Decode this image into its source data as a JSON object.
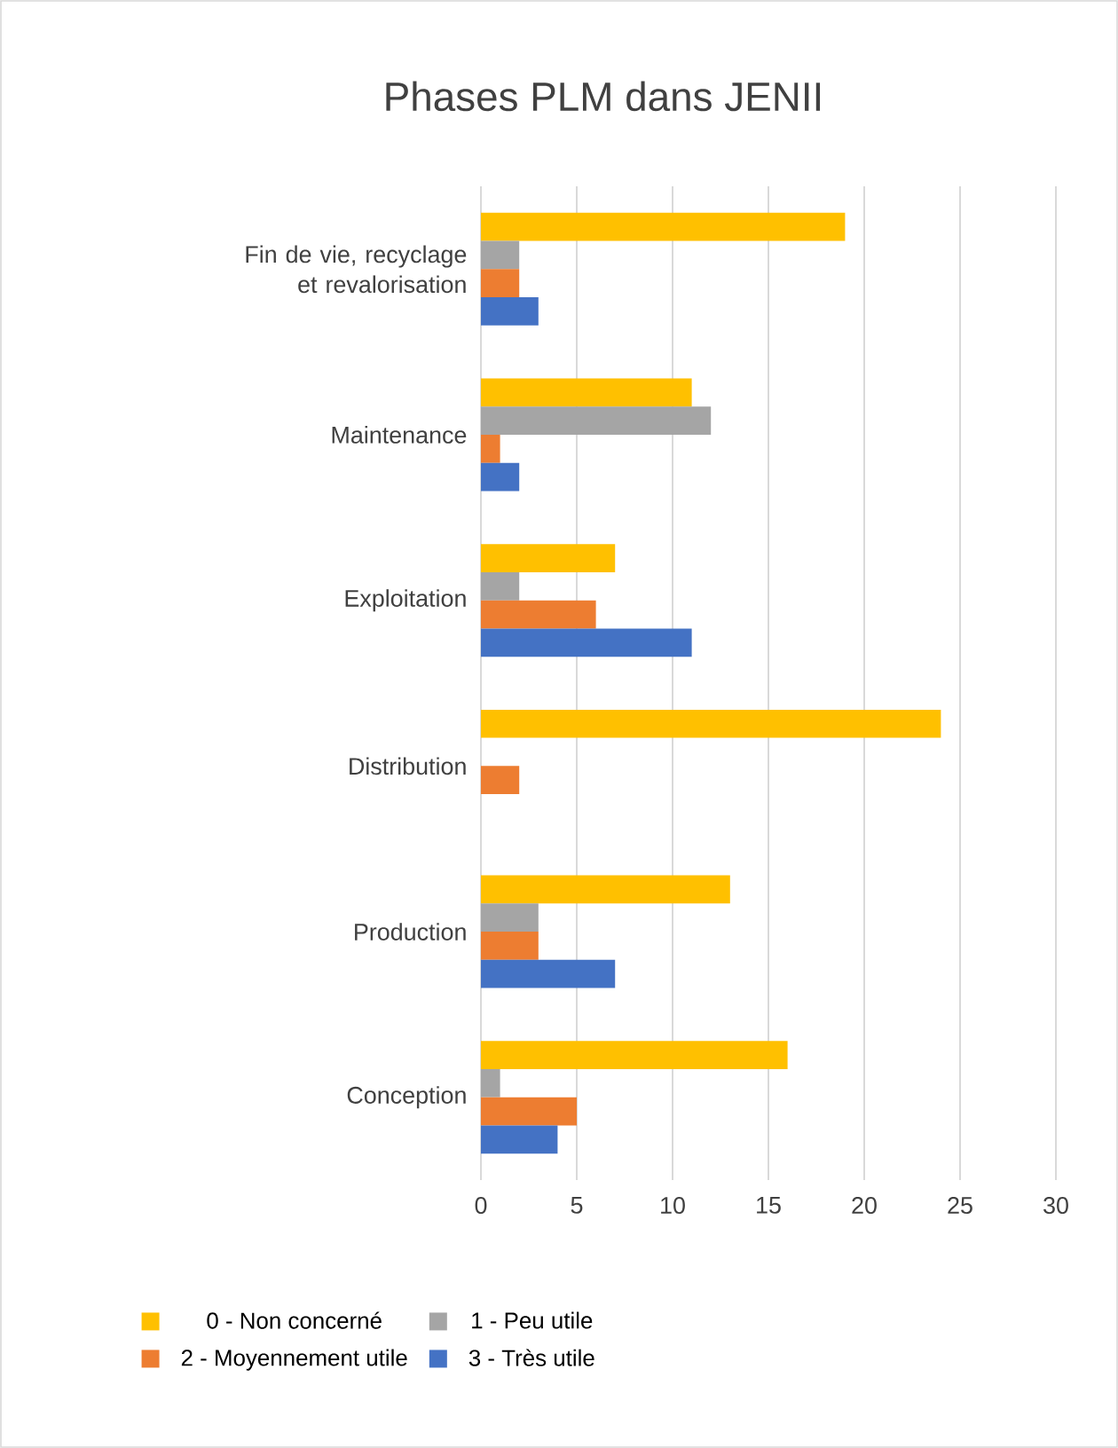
{
  "chart_data": {
    "type": "bar",
    "orientation": "horizontal",
    "title": "Phases PLM dans JENII",
    "categories": [
      "Fin de vie, recyclage et revalorisation",
      "Maintenance",
      "Exploitation",
      "Distribution",
      "Production",
      "Conception"
    ],
    "series": [
      {
        "name": "0 - Non concerné",
        "color": "#ffc000",
        "values": [
          19,
          11,
          7,
          24,
          13,
          16
        ]
      },
      {
        "name": "1 - Peu utile",
        "color": "#a5a5a5",
        "values": [
          2,
          12,
          2,
          0,
          3,
          1
        ]
      },
      {
        "name": "2 - Moyennement utile",
        "color": "#ed7d31",
        "values": [
          2,
          1,
          6,
          2,
          3,
          5
        ]
      },
      {
        "name": "3 - Très utile",
        "color": "#4472c4",
        "values": [
          3,
          2,
          11,
          0,
          7,
          4
        ]
      }
    ],
    "xlim": [
      0,
      30
    ],
    "xticks": [
      0,
      5,
      10,
      15,
      20,
      25,
      30
    ],
    "grid": "x",
    "legend": "bottom"
  }
}
